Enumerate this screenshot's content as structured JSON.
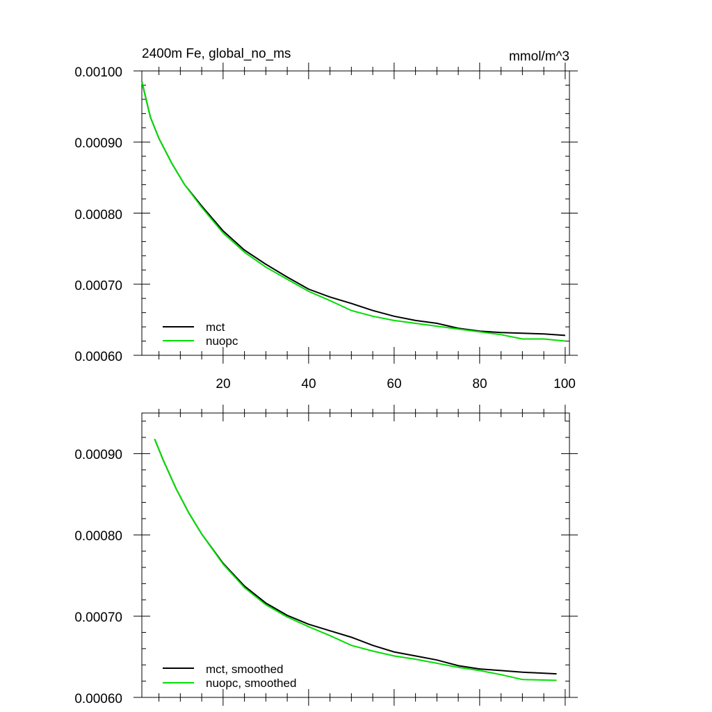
{
  "colors": {
    "mct": "#000000",
    "nuopc": "#00dd00",
    "axis": "#000000",
    "background": "#ffffff"
  },
  "chart_data": [
    {
      "type": "line",
      "title": "2400m Fe, global_no_ms",
      "units": "mmol/m^3",
      "xlim": [
        1,
        101
      ],
      "ylim": [
        0.0006,
        0.001
      ],
      "y_ticks": [
        "0.00060",
        "0.00070",
        "0.00080",
        "0.00090",
        "0.00100"
      ],
      "x_ticks": [
        "20",
        "40",
        "60",
        "80",
        "100"
      ],
      "grid": false,
      "legend_position": "bottom-left",
      "series": [
        {
          "name": "mct",
          "x": [
            1,
            3,
            5,
            8,
            11,
            15,
            20,
            25,
            30,
            35,
            40,
            45,
            50,
            55,
            60,
            65,
            70,
            75,
            80,
            85,
            90,
            95,
            100
          ],
          "y": [
            0.000985,
            0.000935,
            0.000905,
            0.00087,
            0.00084,
            0.00081,
            0.000775,
            0.000748,
            0.000728,
            0.00071,
            0.000693,
            0.000682,
            0.000673,
            0.000663,
            0.000655,
            0.000649,
            0.000645,
            0.000638,
            0.000634,
            0.000632,
            0.000631,
            0.00063,
            0.000628
          ]
        },
        {
          "name": "nuopc",
          "x": [
            1,
            3,
            5,
            8,
            11,
            15,
            20,
            25,
            30,
            35,
            40,
            45,
            50,
            55,
            60,
            65,
            70,
            75,
            80,
            85,
            90,
            95,
            100
          ],
          "y": [
            0.000985,
            0.000935,
            0.000905,
            0.00087,
            0.00084,
            0.000808,
            0.000772,
            0.000745,
            0.000724,
            0.000707,
            0.00069,
            0.000677,
            0.000663,
            0.000655,
            0.000649,
            0.000645,
            0.000641,
            0.000637,
            0.000633,
            0.000629,
            0.000623,
            0.000623,
            0.00062
          ]
        }
      ]
    },
    {
      "type": "line",
      "xlim": [
        1,
        101
      ],
      "ylim": [
        0.0006,
        0.00095
      ],
      "y_ticks": [
        "0.00060",
        "0.00070",
        "0.00080",
        "0.00090"
      ],
      "grid": false,
      "legend_position": "bottom-left",
      "series": [
        {
          "name": "mct, smoothed",
          "x": [
            4,
            6,
            9,
            12,
            15,
            20,
            25,
            30,
            35,
            40,
            45,
            50,
            55,
            60,
            65,
            70,
            75,
            80,
            85,
            90,
            98
          ],
          "y": [
            0.000918,
            0.000892,
            0.000857,
            0.000827,
            0.000801,
            0.000765,
            0.000737,
            0.000716,
            0.000701,
            0.00069,
            0.000682,
            0.000674,
            0.000664,
            0.000656,
            0.000651,
            0.000646,
            0.000639,
            0.000635,
            0.000633,
            0.000631,
            0.000629
          ]
        },
        {
          "name": "nuopc, smoothed",
          "x": [
            4,
            6,
            9,
            12,
            15,
            20,
            25,
            30,
            35,
            40,
            45,
            50,
            55,
            60,
            65,
            70,
            75,
            80,
            85,
            90,
            98
          ],
          "y": [
            0.000918,
            0.000892,
            0.000857,
            0.000827,
            0.000801,
            0.000764,
            0.000735,
            0.000714,
            0.000699,
            0.000687,
            0.000676,
            0.000664,
            0.000657,
            0.000651,
            0.000647,
            0.000642,
            0.000637,
            0.000633,
            0.000628,
            0.000622,
            0.000621
          ]
        }
      ]
    }
  ]
}
